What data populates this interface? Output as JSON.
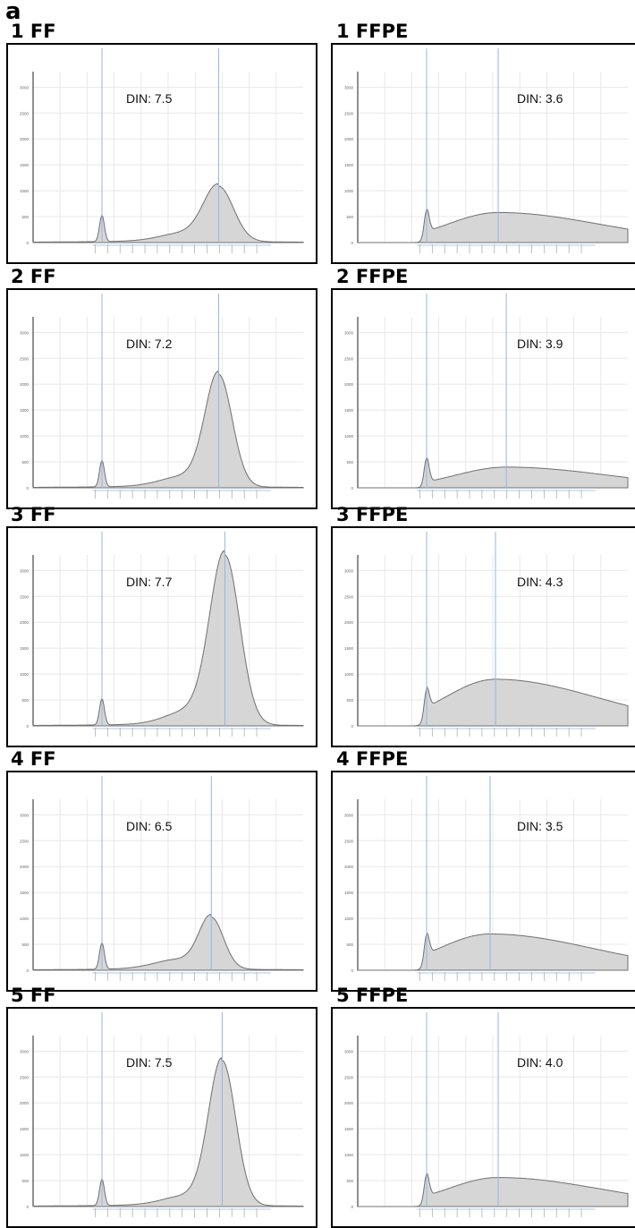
{
  "figure_label": "a",
  "chart_data": [
    {
      "type": "area",
      "title": "1 FF",
      "annotation": "DIN: 7.5",
      "y_ticks": [
        "3000",
        "2500",
        "2000",
        "1500",
        "1000",
        "500",
        "0"
      ],
      "ylim": [
        0,
        3300
      ],
      "profile": {
        "marker_height": 510,
        "peak_height": 1050,
        "peak_width": 0.055,
        "shoulder": 150,
        "ladder_peak_at": 0.687,
        "tail": 40
      }
    },
    {
      "type": "area",
      "title": "1 FFPE",
      "annotation": "DIN: 3.6",
      "y_ticks": [
        "3000",
        "2500",
        "2000",
        "1500",
        "1000",
        "500",
        "0"
      ],
      "ylim": [
        0,
        3300
      ],
      "profile": {
        "marker_height": 510,
        "peak_height": 580,
        "peak_width": 0.42,
        "shoulder": 0,
        "ladder_peak_at": 0.52,
        "tail": 0
      }
    },
    {
      "type": "area",
      "title": "2 FF",
      "annotation": "DIN: 7.2",
      "y_ticks": [
        "3000",
        "2500",
        "2000",
        "1500",
        "1000",
        "500",
        "0"
      ],
      "ylim": [
        0,
        3300
      ],
      "profile": {
        "marker_height": 510,
        "peak_height": 2150,
        "peak_width": 0.05,
        "shoulder": 190,
        "ladder_peak_at": 0.687,
        "tail": 40
      }
    },
    {
      "type": "area",
      "title": "2 FFPE",
      "annotation": "DIN: 3.9",
      "y_ticks": [
        "3000",
        "2500",
        "2000",
        "1500",
        "1000",
        "500",
        "0"
      ],
      "ylim": [
        0,
        3300
      ],
      "profile": {
        "marker_height": 510,
        "peak_height": 400,
        "peak_width": 0.42,
        "shoulder": 0,
        "ladder_peak_at": 0.55,
        "tail": 0
      }
    },
    {
      "type": "area",
      "title": "3 FF",
      "annotation": "DIN: 7.7",
      "y_ticks": [
        "3000",
        "2500",
        "2000",
        "1500",
        "1000",
        "500",
        "0"
      ],
      "ylim": [
        0,
        3300
      ],
      "profile": {
        "marker_height": 510,
        "peak_height": 3250,
        "peak_width": 0.055,
        "shoulder": 270,
        "ladder_peak_at": 0.71,
        "tail": 40
      }
    },
    {
      "type": "area",
      "title": "3 FFPE",
      "annotation": "DIN: 4.3",
      "y_ticks": [
        "3000",
        "2500",
        "2000",
        "1500",
        "1000",
        "500",
        "0"
      ],
      "ylim": [
        0,
        3300
      ],
      "profile": {
        "marker_height": 510,
        "peak_height": 900,
        "peak_width": 0.42,
        "shoulder": 0,
        "ladder_peak_at": 0.51,
        "tail": 0
      }
    },
    {
      "type": "area",
      "title": "4 FF",
      "annotation": "DIN: 6.5",
      "y_ticks": [
        "3000",
        "2500",
        "2000",
        "1500",
        "1000",
        "500",
        "0"
      ],
      "ylim": [
        0,
        3300
      ],
      "profile": {
        "marker_height": 510,
        "peak_height": 980,
        "peak_width": 0.045,
        "shoulder": 170,
        "ladder_peak_at": 0.66,
        "tail": 40
      }
    },
    {
      "type": "area",
      "title": "4 FFPE",
      "annotation": "DIN: 3.5",
      "y_ticks": [
        "3000",
        "2500",
        "2000",
        "1500",
        "1000",
        "500",
        "0"
      ],
      "ylim": [
        0,
        3300
      ],
      "profile": {
        "marker_height": 510,
        "peak_height": 700,
        "peak_width": 0.42,
        "shoulder": 0,
        "ladder_peak_at": 0.49,
        "tail": 0
      }
    },
    {
      "type": "area",
      "title": "5 FF",
      "annotation": "DIN: 7.5",
      "y_ticks": [
        "3000",
        "2500",
        "2000",
        "1500",
        "1000",
        "500",
        "0"
      ],
      "ylim": [
        0,
        3300
      ],
      "profile": {
        "marker_height": 510,
        "peak_height": 2780,
        "peak_width": 0.05,
        "shoulder": 180,
        "ladder_peak_at": 0.7,
        "tail": 40
      }
    },
    {
      "type": "area",
      "title": "5 FFPE",
      "annotation": "DIN: 4.0",
      "y_ticks": [
        "3000",
        "2500",
        "2000",
        "1500",
        "1000",
        "500",
        "0"
      ],
      "ylim": [
        0,
        3300
      ],
      "profile": {
        "marker_height": 510,
        "peak_height": 560,
        "peak_width": 0.42,
        "shoulder": 0,
        "ladder_peak_at": 0.52,
        "tail": 0
      }
    }
  ],
  "colors": {
    "fill": "#d6d6d6",
    "trace": "#707070",
    "marker_line": "#8fb8e4",
    "grid": "#e8e8e8",
    "axis": "#222222",
    "border": "#000000"
  }
}
